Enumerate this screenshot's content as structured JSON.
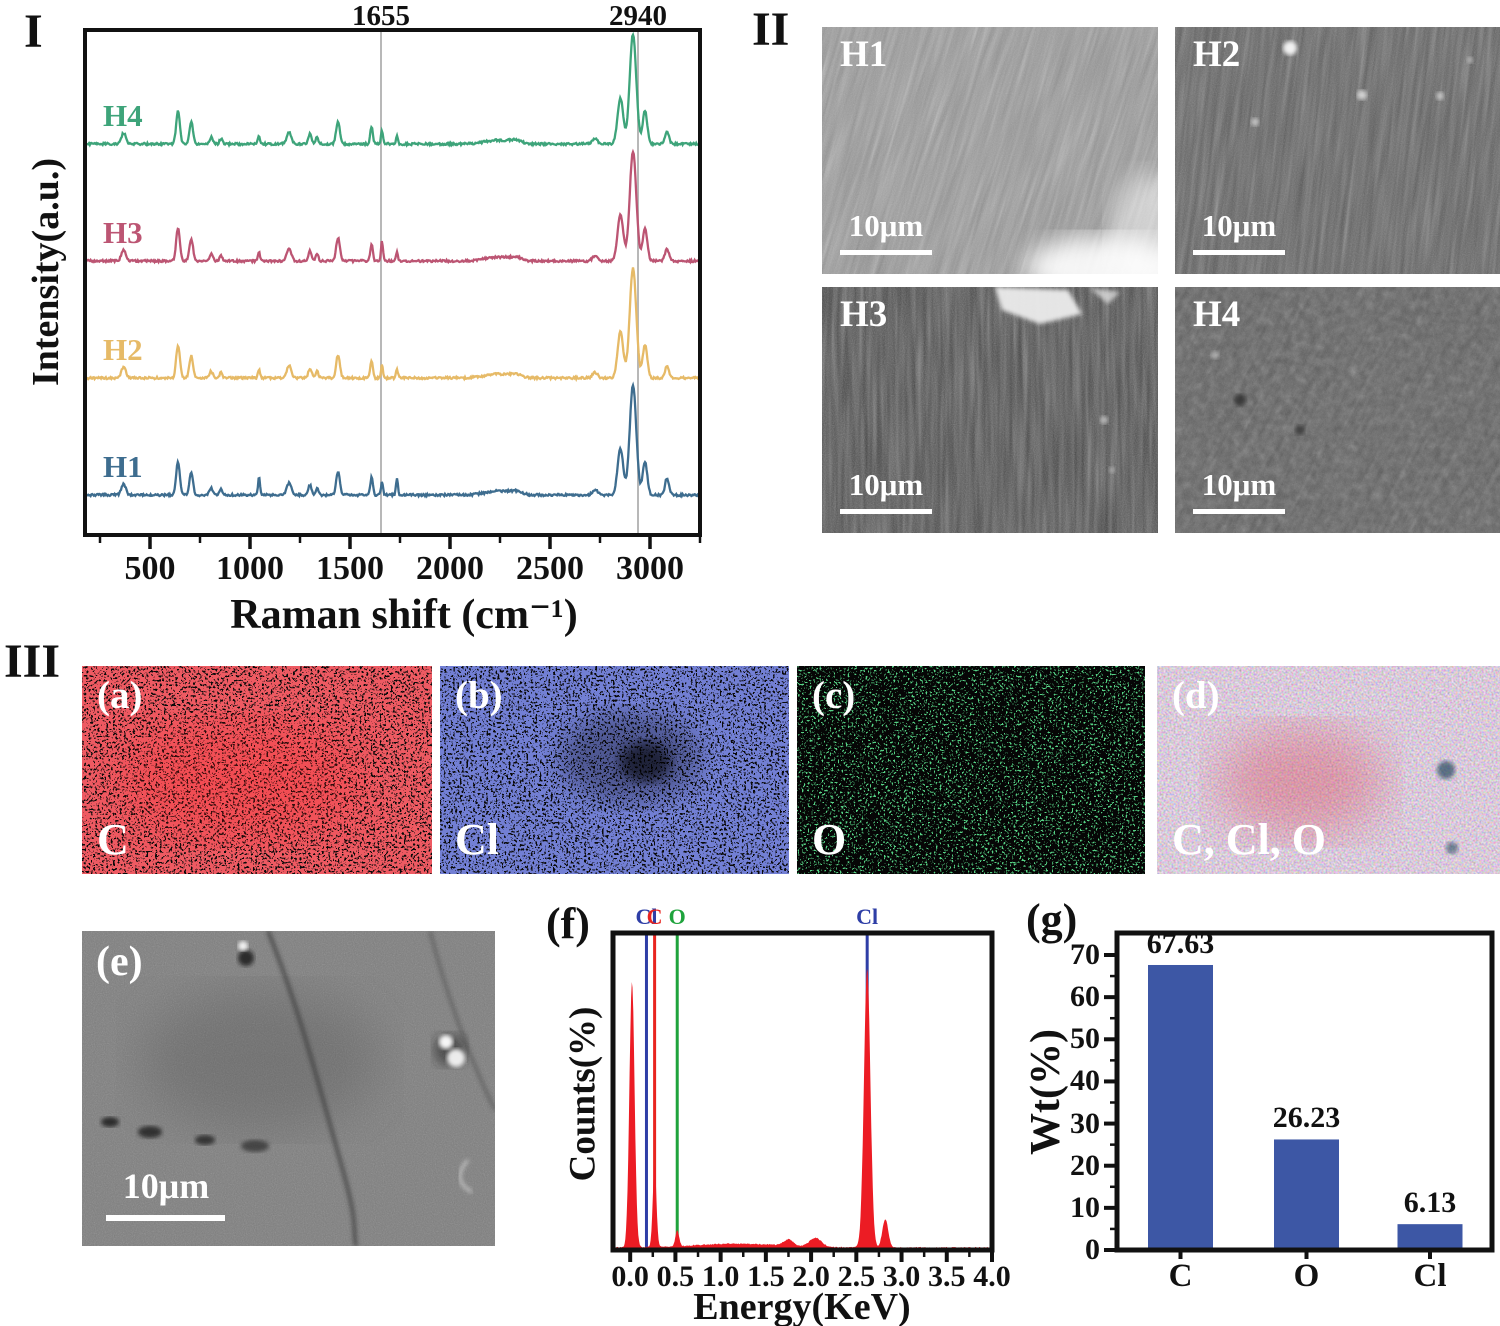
{
  "figure": {
    "panel_labels": {
      "raman": "I",
      "sem": "II",
      "maps": "III"
    },
    "sem_images": [
      {
        "name": "H1",
        "scale_label": "10μm"
      },
      {
        "name": "H2",
        "scale_label": "10μm"
      },
      {
        "name": "H3",
        "scale_label": "10μm"
      },
      {
        "name": "H4",
        "scale_label": "10μm"
      }
    ],
    "map_images": [
      {
        "tag": "(a)",
        "element": "C"
      },
      {
        "tag": "(b)",
        "element": "Cl"
      },
      {
        "tag": "(c)",
        "element": "O"
      },
      {
        "tag": "(d)",
        "element": "C, Cl, O"
      }
    ],
    "sem_e": {
      "tag": "(e)",
      "scale_label": "10μm"
    },
    "eds_tag": "(f)",
    "bar_tag": "(g)"
  },
  "chart_data": [
    {
      "id": "raman",
      "type": "line",
      "title": "",
      "xlabel": "Raman shift (cm⁻¹)",
      "ylabel": "Intensity(a.u.)",
      "xlim": [
        175,
        3250
      ],
      "x_ticks": [
        500,
        1000,
        1500,
        2000,
        2500,
        3000
      ],
      "x_minor_step": 250,
      "grid": false,
      "annotations": [
        {
          "x": 1655,
          "label": "1655"
        },
        {
          "x": 2940,
          "label": "2940"
        }
      ],
      "series": [
        {
          "name": "H1",
          "color": "#3e6d8f",
          "peak_scales": {
            "1045": 2.0,
            "1735": 1.8,
            "3085": 1.4
          }
        },
        {
          "name": "H2",
          "color": "#e6ba67",
          "peak_scales": {}
        },
        {
          "name": "H3",
          "color": "#bc5573",
          "peak_scales": {
            "1660": 1.5
          }
        },
        {
          "name": "H4",
          "color": "#3ea47a",
          "peak_scales": {}
        }
      ],
      "peaks": [
        {
          "x": 368,
          "a": 0.1,
          "w": 16
        },
        {
          "x": 640,
          "a": 0.3,
          "w": 13
        },
        {
          "x": 706,
          "a": 0.2,
          "w": 13
        },
        {
          "x": 806,
          "a": 0.06,
          "w": 12
        },
        {
          "x": 855,
          "a": 0.05,
          "w": 10
        },
        {
          "x": 1045,
          "a": 0.08,
          "w": 7
        },
        {
          "x": 1195,
          "a": 0.11,
          "w": 16
        },
        {
          "x": 1300,
          "a": 0.09,
          "w": 12
        },
        {
          "x": 1335,
          "a": 0.06,
          "w": 10
        },
        {
          "x": 1440,
          "a": 0.21,
          "w": 13
        },
        {
          "x": 1608,
          "a": 0.16,
          "w": 9
        },
        {
          "x": 1660,
          "a": 0.12,
          "w": 7
        },
        {
          "x": 1735,
          "a": 0.08,
          "w": 7
        },
        {
          "x": 2240,
          "a": 0.035,
          "w": 90
        },
        {
          "x": 2330,
          "a": 0.025,
          "w": 40
        },
        {
          "x": 2725,
          "a": 0.05,
          "w": 18
        },
        {
          "x": 2852,
          "a": 0.42,
          "w": 20
        },
        {
          "x": 2915,
          "a": 1.0,
          "w": 23
        },
        {
          "x": 2975,
          "a": 0.3,
          "w": 16
        },
        {
          "x": 3085,
          "a": 0.11,
          "w": 14
        }
      ]
    },
    {
      "id": "eds",
      "type": "area",
      "xlabel": "Energy(KeV)",
      "ylabel": "Counts(%)",
      "xlim": [
        -0.19,
        4.0
      ],
      "x_ticks": [
        0,
        0.5,
        1,
        1.5,
        2,
        2.5,
        3,
        3.5,
        4
      ],
      "x_tick_labels": [
        "0.0",
        "0.5",
        "1.0",
        "1.5",
        "2.0",
        "2.5",
        "3.0",
        "3.5",
        "4.0"
      ],
      "x_minor_step": 0.25,
      "fill_color": "#ec1c24",
      "baseline": 0.006,
      "element_markers": [
        {
          "x": 0.18,
          "label": "Cl",
          "color": "#2e3ea6"
        },
        {
          "x": 0.27,
          "label": "C",
          "color": "#e8241f"
        },
        {
          "x": 0.52,
          "label": "O",
          "color": "#1fa33c"
        },
        {
          "x": 2.62,
          "label": "Cl",
          "color": "#2e3ea6"
        }
      ],
      "peaks": [
        {
          "x": 0.02,
          "a": 0.84,
          "w": 0.04
        },
        {
          "x": 0.27,
          "a": 0.26,
          "w": 0.028
        },
        {
          "x": 0.52,
          "a": 0.05,
          "w": 0.028
        },
        {
          "x": 1.2,
          "a": 0.012,
          "w": 0.7
        },
        {
          "x": 1.75,
          "a": 0.02,
          "w": 0.07
        },
        {
          "x": 2.05,
          "a": 0.028,
          "w": 0.09
        },
        {
          "x": 2.62,
          "a": 0.88,
          "w": 0.05
        },
        {
          "x": 2.82,
          "a": 0.09,
          "w": 0.045
        }
      ]
    },
    {
      "id": "wt",
      "type": "bar",
      "ylabel": "Wt(%)",
      "categories": [
        "C",
        "O",
        "Cl"
      ],
      "values": [
        67.63,
        26.23,
        6.13
      ],
      "value_labels": [
        "67.63",
        "26.23",
        "6.13"
      ],
      "ylim": [
        0,
        75
      ],
      "y_ticks": [
        0,
        10,
        20,
        30,
        40,
        50,
        60,
        70
      ],
      "y_minor_step": 5,
      "bar_color": "#3d57a5"
    }
  ]
}
